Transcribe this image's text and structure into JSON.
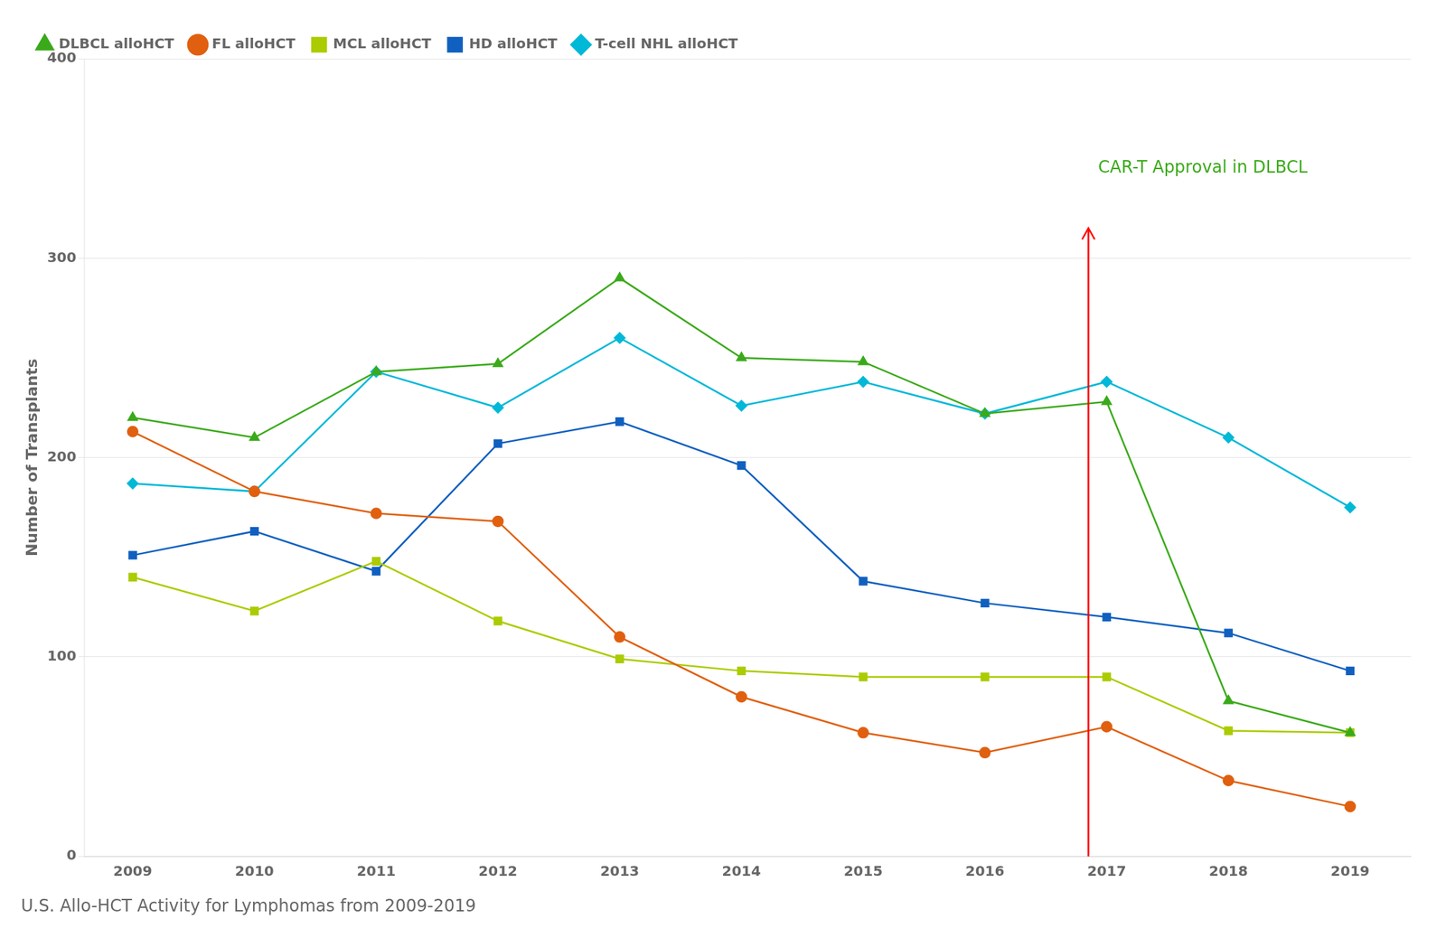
{
  "chart_data": {
    "type": "line",
    "title": "U.S. Allo-HCT Activity for Lymphomas from 2009-2019",
    "y_label": "Number of Transplants",
    "x": [
      2009,
      2010,
      2011,
      2012,
      2013,
      2014,
      2015,
      2016,
      2017,
      2018,
      2019
    ],
    "series": [
      {
        "name": "DLBCL alloHCT",
        "color": "#3aaa1a",
        "marker": "triangle",
        "values": [
          220,
          210,
          243,
          247,
          290,
          250,
          248,
          222,
          228,
          78,
          62
        ]
      },
      {
        "name": "FL alloHCT",
        "color": "#e06010",
        "marker": "circle",
        "values": [
          213,
          183,
          172,
          168,
          110,
          80,
          62,
          52,
          65,
          38,
          25
        ]
      },
      {
        "name": "MCL alloHCT",
        "color": "#aacc00",
        "marker": "square",
        "values": [
          140,
          123,
          148,
          118,
          99,
          93,
          90,
          90,
          90,
          63,
          62
        ]
      },
      {
        "name": "HD alloHCT",
        "color": "#1060c0",
        "marker": "square",
        "values": [
          151,
          163,
          143,
          207,
          218,
          196,
          138,
          127,
          120,
          112,
          93
        ]
      },
      {
        "name": "T-cell NHL alloHCT",
        "color": "#00b8d8",
        "marker": "diamond",
        "values": [
          187,
          183,
          243,
          225,
          260,
          226,
          238,
          222,
          238,
          210,
          175
        ]
      }
    ],
    "xlim": [
      2008.6,
      2019.5
    ],
    "xticks": [
      2009,
      2010,
      2011,
      2012,
      2013,
      2014,
      2015,
      2016,
      2017,
      2018,
      2019
    ],
    "ylim": [
      0,
      400
    ],
    "yticks": [
      0,
      100,
      200,
      300,
      400
    ],
    "grid": "y",
    "legend": "top",
    "annotations": [
      {
        "type": "arrow",
        "x": 2016.85,
        "y": [
          0,
          315
        ],
        "color": "#ff0000"
      },
      {
        "type": "text",
        "text": "CAR-T Approval in DLBCL",
        "x": 2016.85,
        "y": 345,
        "color": "#3aaa1a"
      }
    ]
  }
}
